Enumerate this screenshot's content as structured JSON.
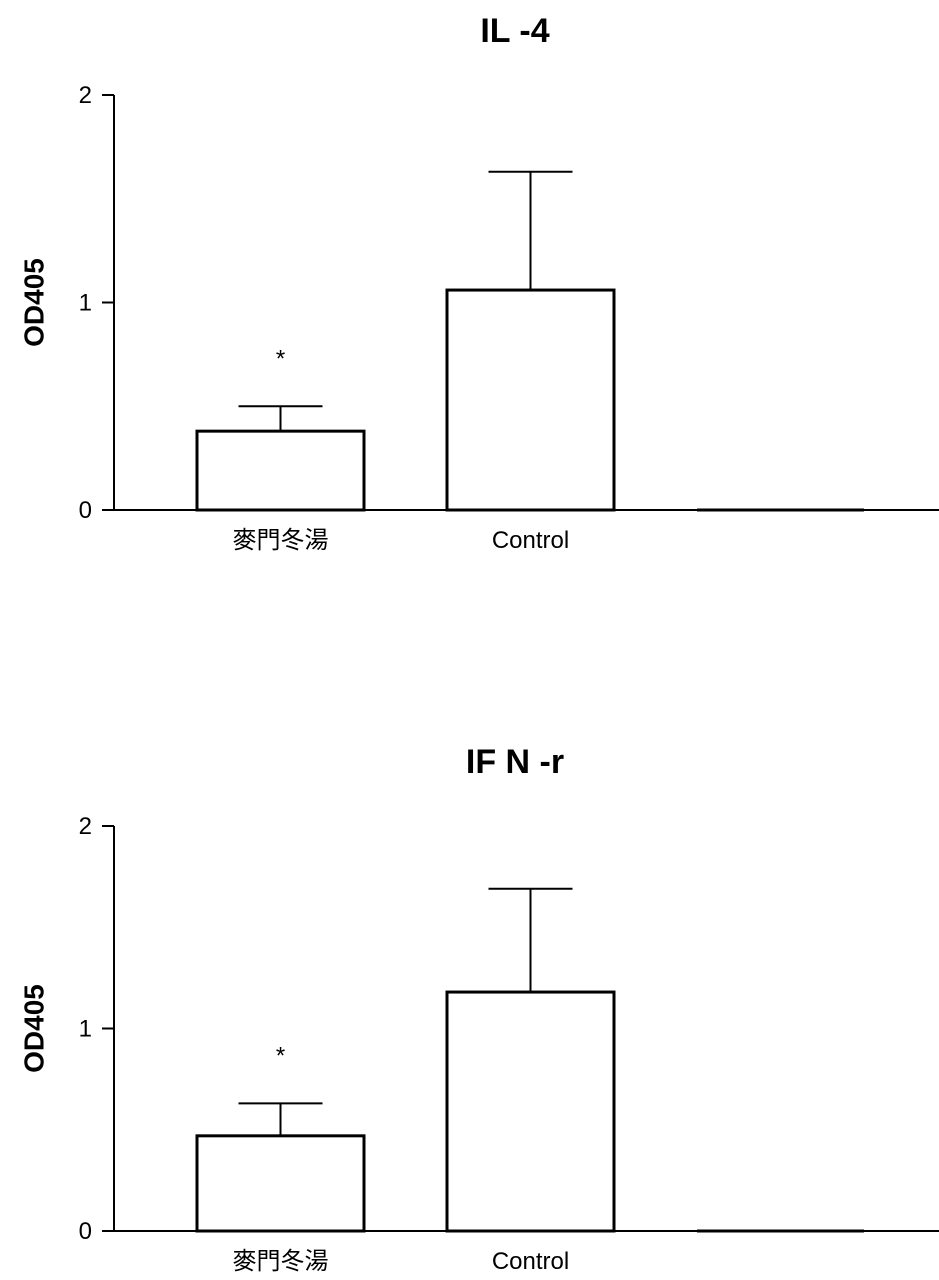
{
  "chart_data": [
    {
      "type": "bar",
      "title": "IL -4",
      "ylabel": "OD405",
      "xlabel": "",
      "ylim": [
        0,
        2
      ],
      "yticks": [
        "0",
        "1",
        "2"
      ],
      "categories": [
        "麥門冬湯",
        "Control",
        ""
      ],
      "values": [
        0.38,
        1.06,
        0
      ],
      "errors": [
        0.12,
        0.57,
        0
      ],
      "annotations": [
        "*",
        "",
        ""
      ],
      "grid": false
    },
    {
      "type": "bar",
      "title": "IF N -r",
      "ylabel": "OD405",
      "xlabel": "",
      "ylim": [
        0,
        2
      ],
      "yticks": [
        "0",
        "1",
        "2"
      ],
      "categories": [
        "麥門冬湯",
        "Control",
        ""
      ],
      "values": [
        0.47,
        1.18,
        0
      ],
      "errors": [
        0.16,
        0.51,
        0
      ],
      "annotations": [
        "*",
        "",
        ""
      ],
      "grid": false
    }
  ]
}
